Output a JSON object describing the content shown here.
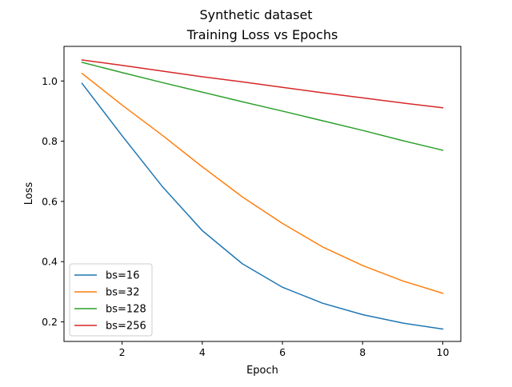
{
  "chart_data": {
    "type": "line",
    "suptitle": "Synthetic dataset",
    "title": "Training Loss vs Epochs",
    "xlabel": "Epoch",
    "ylabel": "Loss",
    "xlim": [
      0.55,
      10.45
    ],
    "ylim": [
      0.135,
      1.115
    ],
    "xticks": [
      2,
      4,
      6,
      8,
      10
    ],
    "yticks": [
      0.2,
      0.4,
      0.6,
      0.8,
      1.0
    ],
    "ytick_labels": [
      "0.2",
      "0.4",
      "0.6",
      "0.8",
      "1.0"
    ],
    "grid": false,
    "legend_position": "lower-left",
    "x": [
      1,
      2,
      3,
      4,
      5,
      6,
      7,
      8,
      9,
      10
    ],
    "series": [
      {
        "name": "bs=16",
        "color": "#1f77b4",
        "values": [
          0.992,
          0.818,
          0.65,
          0.503,
          0.393,
          0.315,
          0.262,
          0.224,
          0.196,
          0.176
        ]
      },
      {
        "name": "bs=32",
        "color": "#ff7f0e",
        "values": [
          1.025,
          0.92,
          0.82,
          0.715,
          0.615,
          0.527,
          0.449,
          0.387,
          0.336,
          0.295
        ]
      },
      {
        "name": "bs=128",
        "color": "#2ca02c",
        "values": [
          1.062,
          1.028,
          0.995,
          0.963,
          0.931,
          0.9,
          0.868,
          0.836,
          0.802,
          0.77
        ]
      },
      {
        "name": "bs=256",
        "color": "#d62728",
        "values": [
          1.07,
          1.052,
          1.033,
          1.014,
          0.997,
          0.979,
          0.961,
          0.944,
          0.927,
          0.911
        ]
      }
    ]
  }
}
